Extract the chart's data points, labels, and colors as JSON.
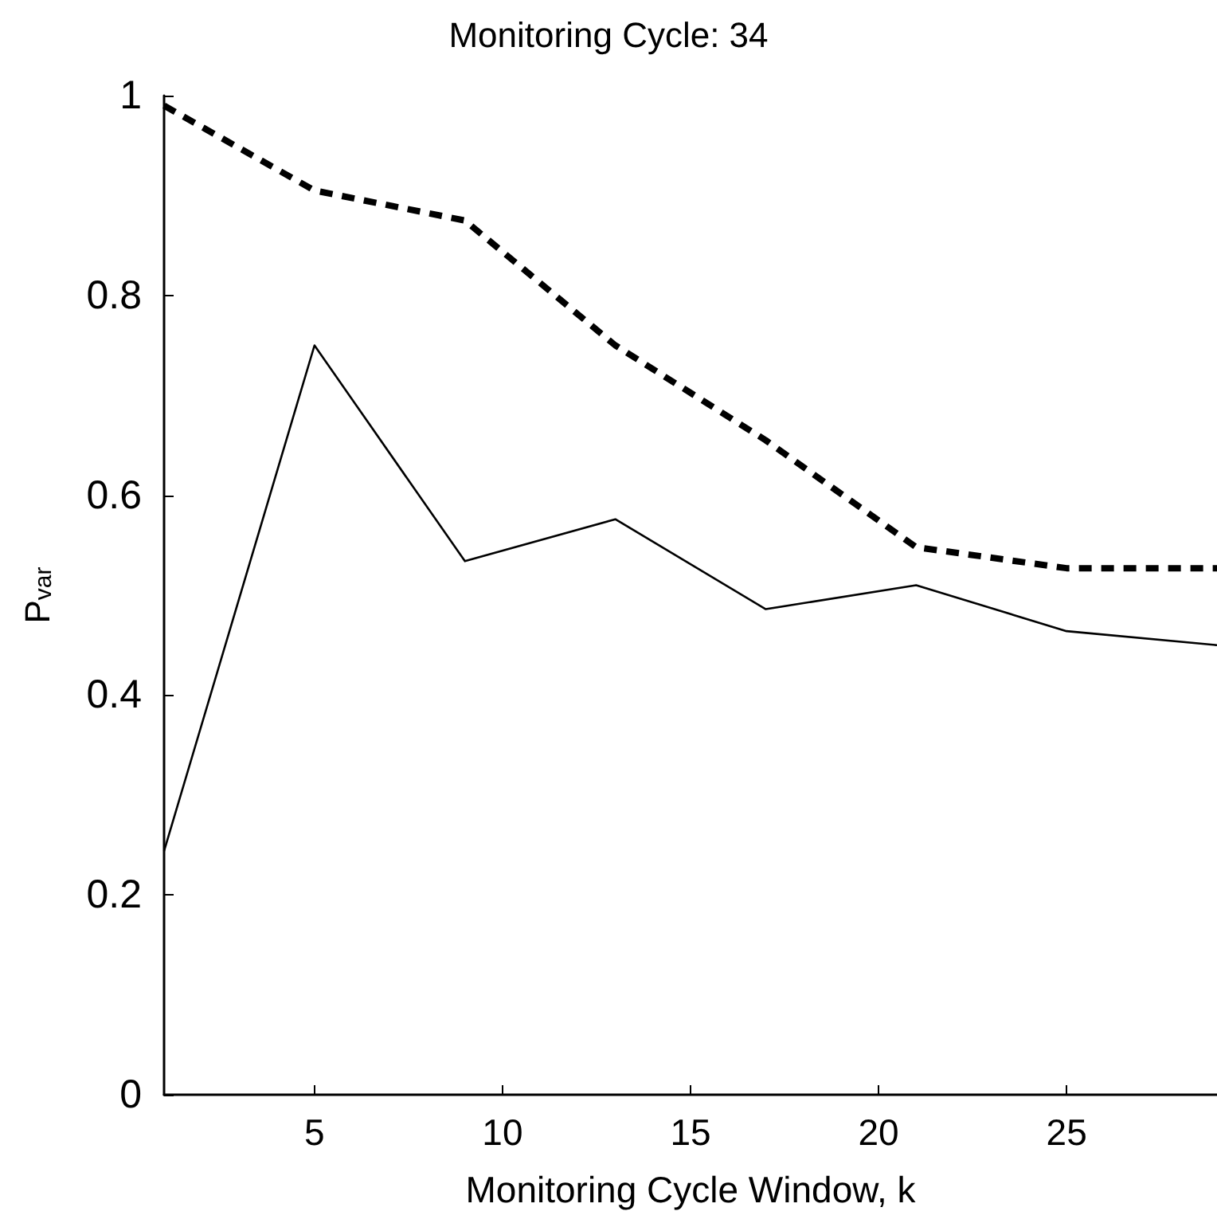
{
  "chart_data": {
    "type": "line",
    "title": "Monitoring Cycle: 34",
    "xlabel": "Monitoring Cycle Window, k",
    "ylabel": "P$_{var}$",
    "x": [
      1,
      5,
      9,
      13,
      17,
      21,
      25,
      29
    ],
    "series": [
      {
        "color": "#000000",
        "line_style": "solid",
        "values": [
          0.244,
          0.75,
          0.534,
          0.576,
          0.486,
          0.51,
          0.464,
          0.45
        ]
      },
      {
        "color": "#000000",
        "line_style": "dashed",
        "values": [
          0.99,
          0.905,
          0.875,
          0.75,
          0.655,
          0.548,
          0.527,
          0.527
        ]
      }
    ],
    "xlim": [
      1,
      29
    ],
    "xticks": [
      5,
      10,
      15,
      20,
      25
    ],
    "ylim": [
      0,
      1
    ],
    "yticks": [
      0,
      0.2,
      0.4,
      0.6,
      0.8,
      1
    ],
    "marker": "none"
  }
}
